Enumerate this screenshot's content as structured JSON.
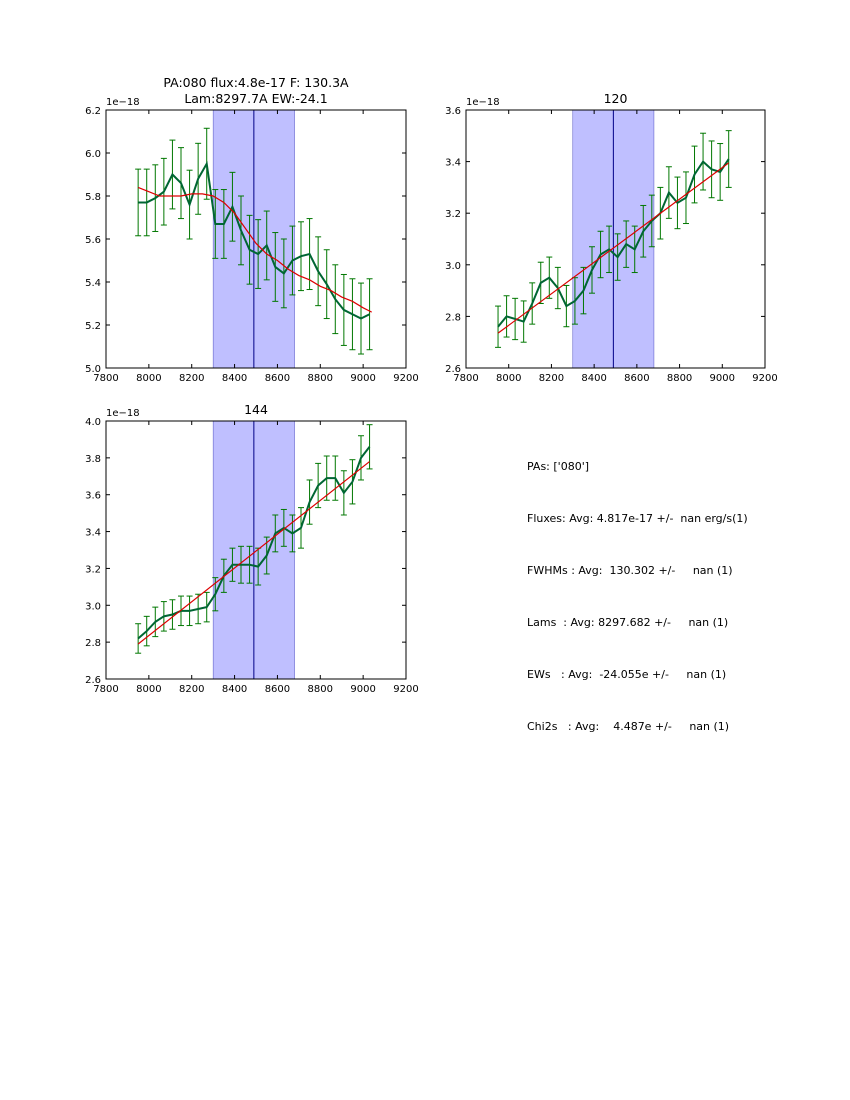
{
  "chart_data": [
    {
      "type": "line",
      "title": "PA:080 flux:4.8e-17 F: 130.3A\nLam:8297.7A EW:-24.1",
      "offset_label": "1e−18",
      "xlabel": "",
      "ylabel": "",
      "xlim": [
        7800,
        9200
      ],
      "ylim": [
        5.0,
        6.2
      ],
      "xticks": [
        "7800",
        "8000",
        "8200",
        "8400",
        "8600",
        "8800",
        "9000",
        "9200"
      ],
      "yticks": [
        "5.0",
        "5.2",
        "5.4",
        "5.6",
        "5.8",
        "6.0",
        "6.2"
      ],
      "shaded_span": [
        8300,
        8680
      ],
      "vline": 8490,
      "colors": {
        "data": "#006633",
        "errorbar": "#007700",
        "fit": "#dd0000",
        "span": "#8080ff",
        "vline": "#000088"
      },
      "series": [
        {
          "name": "data",
          "x": [
            7950,
            7990,
            8030,
            8070,
            8110,
            8150,
            8190,
            8230,
            8270,
            8310,
            8350,
            8390,
            8430,
            8470,
            8510,
            8550,
            8590,
            8630,
            8670,
            8710,
            8750,
            8790,
            8830,
            8870,
            8910,
            8950,
            8990,
            9030
          ],
          "y": [
            5.77,
            5.77,
            5.79,
            5.82,
            5.9,
            5.86,
            5.76,
            5.88,
            5.95,
            5.67,
            5.67,
            5.75,
            5.64,
            5.55,
            5.53,
            5.57,
            5.47,
            5.44,
            5.5,
            5.52,
            5.53,
            5.45,
            5.39,
            5.32,
            5.27,
            5.25,
            5.23,
            5.25
          ],
          "err": [
            0.155,
            0.155,
            0.155,
            0.155,
            0.16,
            0.165,
            0.16,
            0.165,
            0.165,
            0.16,
            0.16,
            0.16,
            0.16,
            0.16,
            0.16,
            0.16,
            0.16,
            0.16,
            0.16,
            0.16,
            0.165,
            0.16,
            0.16,
            0.16,
            0.165,
            0.165,
            0.165,
            0.165
          ]
        },
        {
          "name": "fit",
          "x": [
            7950,
            8000,
            8050,
            8100,
            8150,
            8200,
            8250,
            8300,
            8350,
            8400,
            8450,
            8500,
            8550,
            8600,
            8650,
            8700,
            8750,
            8800,
            8850,
            8900,
            8950,
            9000,
            9040
          ],
          "y": [
            5.84,
            5.82,
            5.8,
            5.8,
            5.8,
            5.81,
            5.81,
            5.8,
            5.77,
            5.72,
            5.65,
            5.58,
            5.53,
            5.5,
            5.46,
            5.43,
            5.41,
            5.38,
            5.36,
            5.33,
            5.31,
            5.28,
            5.26
          ]
        }
      ]
    },
    {
      "type": "line",
      "title": "120",
      "offset_label": "1e−18",
      "xlabel": "",
      "ylabel": "",
      "xlim": [
        7800,
        9200
      ],
      "ylim": [
        2.6,
        3.6
      ],
      "xticks": [
        "7800",
        "8000",
        "8200",
        "8400",
        "8600",
        "8800",
        "9000",
        "9200"
      ],
      "yticks": [
        "2.6",
        "2.8",
        "3.0",
        "3.2",
        "3.4",
        "3.6"
      ],
      "shaded_span": [
        8300,
        8680
      ],
      "vline": 8490,
      "colors": {
        "data": "#006633",
        "errorbar": "#007700",
        "fit": "#dd0000",
        "span": "#8080ff",
        "vline": "#000088"
      },
      "series": [
        {
          "name": "data",
          "x": [
            7950,
            7990,
            8030,
            8070,
            8110,
            8150,
            8190,
            8230,
            8270,
            8310,
            8350,
            8390,
            8430,
            8470,
            8510,
            8550,
            8590,
            8630,
            8670,
            8710,
            8750,
            8790,
            8830,
            8870,
            8910,
            8950,
            8990,
            9030
          ],
          "y": [
            2.76,
            2.8,
            2.79,
            2.78,
            2.85,
            2.93,
            2.95,
            2.91,
            2.84,
            2.86,
            2.9,
            2.98,
            3.04,
            3.06,
            3.03,
            3.08,
            3.06,
            3.13,
            3.17,
            3.2,
            3.28,
            3.24,
            3.26,
            3.35,
            3.4,
            3.37,
            3.36,
            3.41
          ],
          "err": [
            0.08,
            0.08,
            0.08,
            0.08,
            0.08,
            0.08,
            0.08,
            0.08,
            0.08,
            0.09,
            0.09,
            0.09,
            0.09,
            0.09,
            0.09,
            0.09,
            0.09,
            0.1,
            0.1,
            0.1,
            0.1,
            0.1,
            0.1,
            0.11,
            0.11,
            0.11,
            0.11,
            0.11
          ]
        },
        {
          "name": "fit",
          "x": [
            7950,
            9030
          ],
          "y": [
            2.735,
            3.395
          ]
        }
      ]
    },
    {
      "type": "line",
      "title": "144",
      "offset_label": "1e−18",
      "xlabel": "",
      "ylabel": "",
      "xlim": [
        7800,
        9200
      ],
      "ylim": [
        2.6,
        4.0
      ],
      "xticks": [
        "7800",
        "8000",
        "8200",
        "8400",
        "8600",
        "8800",
        "9000",
        "9200"
      ],
      "yticks": [
        "2.6",
        "2.8",
        "3.0",
        "3.2",
        "3.4",
        "3.6",
        "3.8",
        "4.0"
      ],
      "shaded_span": [
        8300,
        8680
      ],
      "vline": 8490,
      "colors": {
        "data": "#006633",
        "errorbar": "#007700",
        "fit": "#dd0000",
        "span": "#8080ff",
        "vline": "#000088"
      },
      "series": [
        {
          "name": "data",
          "x": [
            7950,
            7990,
            8030,
            8070,
            8110,
            8150,
            8190,
            8230,
            8270,
            8310,
            8350,
            8390,
            8430,
            8470,
            8510,
            8550,
            8590,
            8630,
            8670,
            8710,
            8750,
            8790,
            8830,
            8870,
            8910,
            8950,
            8990,
            9030
          ],
          "y": [
            2.82,
            2.86,
            2.91,
            2.94,
            2.95,
            2.97,
            2.97,
            2.98,
            2.99,
            3.06,
            3.16,
            3.22,
            3.22,
            3.22,
            3.21,
            3.27,
            3.39,
            3.42,
            3.39,
            3.42,
            3.56,
            3.65,
            3.69,
            3.69,
            3.61,
            3.67,
            3.8,
            3.86
          ],
          "err": [
            0.08,
            0.08,
            0.08,
            0.08,
            0.08,
            0.08,
            0.08,
            0.08,
            0.08,
            0.09,
            0.09,
            0.09,
            0.1,
            0.1,
            0.1,
            0.1,
            0.1,
            0.1,
            0.1,
            0.11,
            0.12,
            0.12,
            0.12,
            0.12,
            0.12,
            0.12,
            0.12,
            0.12
          ]
        },
        {
          "name": "fit",
          "x": [
            7950,
            9030
          ],
          "y": [
            2.79,
            3.78
          ]
        }
      ]
    }
  ],
  "summary": {
    "pas": "PAs: ['080']",
    "fluxes": "Fluxes: Avg: 4.817e-17 +/-  nan erg/s(1)",
    "fwhms": "FWHMs : Avg:  130.302 +/-     nan (1)",
    "lams": "Lams  : Avg: 8297.682 +/-     nan (1)",
    "ews": "EWs   : Avg:  -24.055e +/-     nan (1)",
    "chi2s": "Chi2s   : Avg:    4.487e +/-     nan (1)"
  }
}
